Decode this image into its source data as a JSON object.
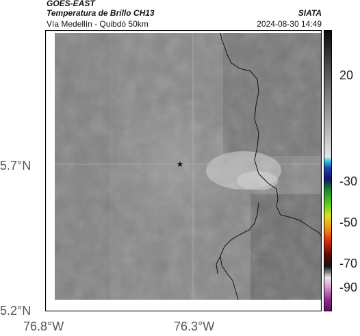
{
  "header": {
    "satellite": "GOES-EAST",
    "product": "Temperatura de Brillo CH13",
    "org": "SIATA",
    "region": "Vía Medellín - Quibdó 50km",
    "datetime": "2024-08-30 14:49"
  },
  "axes": {
    "lat_ticks": [
      "5.7°N",
      "5.2°N"
    ],
    "lon_ticks": [
      "76.8°W",
      "76.3°W"
    ]
  },
  "colorbar": {
    "ticks": [
      "20",
      "-30",
      "-50",
      "-70",
      "-90"
    ]
  },
  "map": {
    "marker": "star",
    "background_color": "#8a8a8a"
  }
}
